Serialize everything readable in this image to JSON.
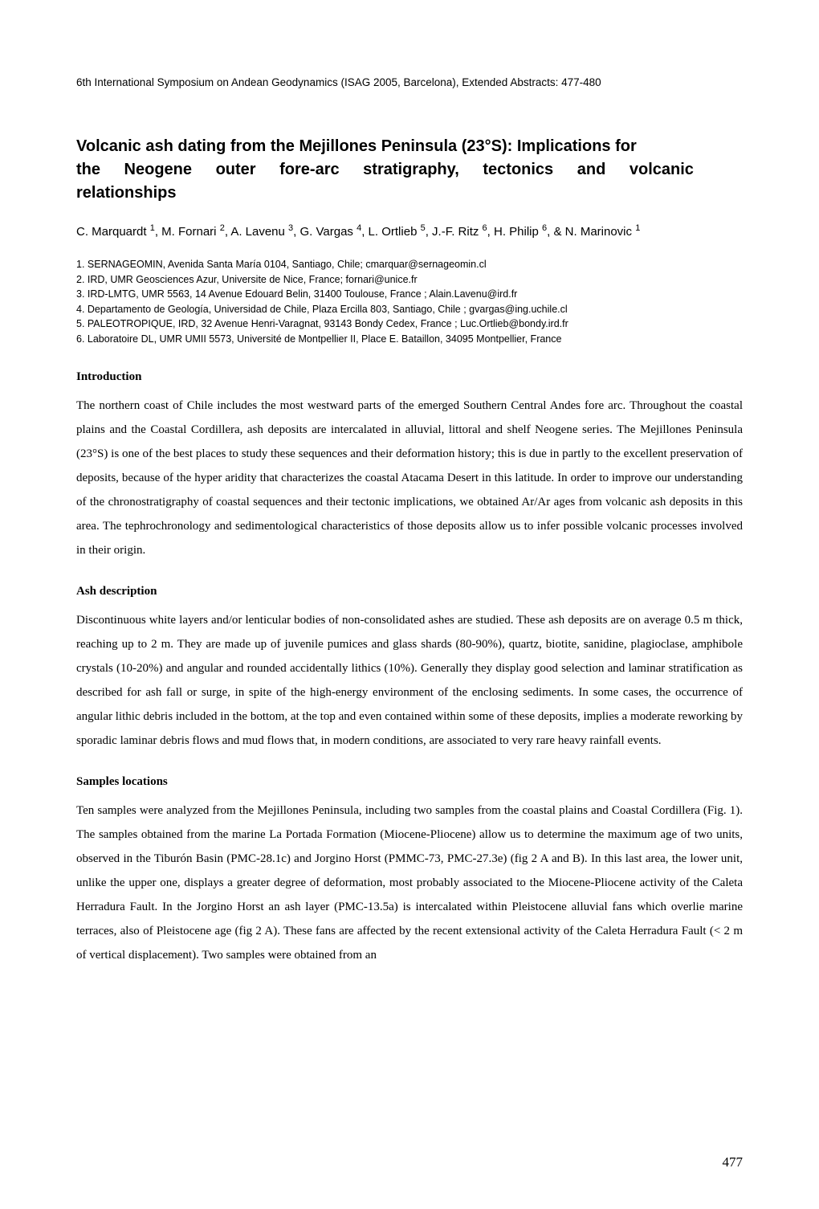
{
  "header": "6th International Symposium on Andean Geodynamics (ISAG 2005, Barcelona), Extended Abstracts: 477-480",
  "title_line1": "Volcanic ash dating from the Mejillones Peninsula (23°S): Implications for",
  "title_line2": "the Neogene outer fore-arc stratigraphy, tectonics and volcanic",
  "title_line3": "relationships",
  "authors_html": "C. Marquardt <sup>1</sup>, M. Fornari <sup>2</sup>, A. Lavenu <sup>3</sup>, G. Vargas <sup>4</sup>, L. Ortlieb <sup>5</sup>, J.-F. Ritz <sup>6</sup>, H. Philip <sup>6</sup>, & N. Marinovic <sup>1</sup>",
  "affiliations": [
    "1. SERNAGEOMIN, Avenida Santa María 0104, Santiago, Chile; cmarquar@sernageomin.cl",
    "2. IRD, UMR Geosciences Azur, Universite de Nice, France; fornari@unice.fr",
    "3. IRD-LMTG, UMR 5563, 14 Avenue Edouard Belin, 31400 Toulouse, France ; Alain.Lavenu@ird.fr",
    "4. Departamento de Geología, Universidad de Chile, Plaza Ercilla 803, Santiago, Chile ; gvargas@ing.uchile.cl",
    "5. PALEOTROPIQUE, IRD, 32 Avenue Henri-Varagnat, 93143 Bondy Cedex, France ; Luc.Ortlieb@bondy.ird.fr",
    "6. Laboratoire DL, UMR UMII 5573, Université de Montpellier II, Place E. Bataillon, 34095 Montpellier, France"
  ],
  "sections": {
    "intro": {
      "heading": "Introduction",
      "body": "The northern coast of Chile includes the most westward parts of the emerged Southern Central Andes fore arc. Throughout the coastal plains and the Coastal Cordillera, ash deposits are intercalated in alluvial, littoral and shelf Neogene series. The Mejillones Peninsula (23°S) is one of the best places to study these sequences and their deformation history; this is due in partly to the excellent preservation of deposits, because of the hyper aridity that characterizes the coastal Atacama Desert in this latitude. In order to improve our understanding of the chronostratigraphy of coastal sequences and their tectonic implications, we obtained Ar/Ar ages from volcanic ash deposits in this area. The tephrochronology and sedimentological characteristics of those deposits allow us to infer possible volcanic processes involved in their origin."
    },
    "ash": {
      "heading": "Ash description",
      "body": "Discontinuous white layers and/or lenticular bodies of non-consolidated ashes are studied. These ash deposits are on average 0.5 m thick, reaching up to 2 m. They are made up of juvenile pumices and glass shards (80-90%), quartz, biotite, sanidine, plagioclase, amphibole crystals (10-20%) and angular and rounded accidentally lithics (10%). Generally they display good selection and laminar stratification as described for ash fall or surge, in spite of the high-energy environment of the enclosing sediments. In some cases, the occurrence of angular lithic debris included in the bottom, at the top and even contained within some of these deposits, implies a moderate reworking by sporadic laminar debris flows and mud flows that, in modern conditions, are associated to very rare heavy rainfall events."
    },
    "samples": {
      "heading": "Samples locations",
      "body": "Ten samples were analyzed from the Mejillones Peninsula, including two samples from the coastal plains and Coastal Cordillera (Fig. 1). The samples obtained from the marine La Portada Formation (Miocene-Pliocene) allow us to determine the maximum age of two units, observed in the Tiburón Basin (PMC-28.1c) and Jorgino Horst (PMMC-73, PMC-27.3e) (fig 2 A and B). In this last area, the lower unit, unlike the upper one, displays a greater degree of deformation, most probably associated to the Miocene-Pliocene activity of the Caleta Herradura Fault. In the Jorgino Horst an ash layer (PMC-13.5a) is intercalated within Pleistocene alluvial fans which overlie marine terraces, also of Pleistocene age (fig 2 A). These fans are affected by the recent extensional activity of the Caleta Herradura Fault (< 2 m of vertical displacement). Two samples were obtained from an"
    }
  },
  "page_number": "477"
}
